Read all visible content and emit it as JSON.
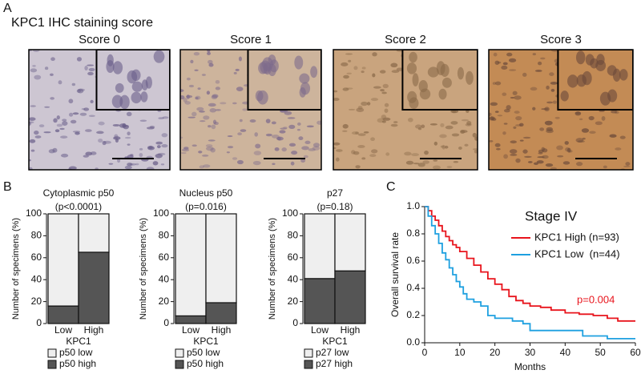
{
  "figure": {
    "panel_labels": [
      "A",
      "B",
      "C"
    ],
    "panel_a": {
      "title": "KPC1 IHC staining score",
      "images": [
        "Score 0",
        "Score 1",
        "Score 2",
        "Score 3"
      ]
    }
  },
  "chart_data": [
    {
      "type": "bar",
      "stacked": true,
      "title": "Cytoplasmic p50",
      "subtitle": "(p<0.0001)",
      "categories": [
        "Low",
        "High"
      ],
      "x_label": "KPC1",
      "y_label": "Number of specimens (%)",
      "ylim": [
        0,
        100
      ],
      "yticks": [
        0,
        20,
        40,
        60,
        80,
        100
      ],
      "series": [
        {
          "name": "p50 low",
          "color": "#efefef",
          "values": [
            84,
            35
          ]
        },
        {
          "name": "p50 high",
          "color": "#555555",
          "values": [
            16,
            65
          ]
        }
      ]
    },
    {
      "type": "bar",
      "stacked": true,
      "title": "Nucleus p50",
      "subtitle": "(p=0.016)",
      "categories": [
        "Low",
        "High"
      ],
      "x_label": "KPC1",
      "y_label": "Number of specimens (%)",
      "ylim": [
        0,
        100
      ],
      "yticks": [
        0,
        20,
        40,
        60,
        80,
        100
      ],
      "series": [
        {
          "name": "p50 low",
          "color": "#efefef",
          "values": [
            93,
            81
          ]
        },
        {
          "name": "p50 high",
          "color": "#555555",
          "values": [
            7,
            19
          ]
        }
      ]
    },
    {
      "type": "bar",
      "stacked": true,
      "title": "p27",
      "subtitle": "(p=0.18)",
      "categories": [
        "Low",
        "High"
      ],
      "x_label": "KPC1",
      "y_label": "Number of specimens (%)",
      "ylim": [
        0,
        100
      ],
      "yticks": [
        0,
        20,
        40,
        60,
        80,
        100
      ],
      "series": [
        {
          "name": "p27 low",
          "color": "#efefef",
          "values": [
            59,
            52
          ]
        },
        {
          "name": "p27 high",
          "color": "#555555",
          "values": [
            41,
            48
          ]
        }
      ]
    },
    {
      "type": "line",
      "drawstyle": "steps-post",
      "title": "Stage IV",
      "annotation": "p=0.004",
      "annotation_color": "#e8141c",
      "x_label": "Months",
      "y_label": "Overall survival rate",
      "legend": "upper right",
      "xlim": [
        0,
        60
      ],
      "xticks": [
        0,
        10,
        20,
        30,
        40,
        50,
        60
      ],
      "ylim": [
        0,
        1
      ],
      "yticks": [
        {
          "value": 0,
          "label": "0.0"
        },
        0.2,
        0.4,
        0.6,
        0.8,
        {
          "value": 1,
          "label": "1.0"
        }
      ],
      "series": [
        {
          "name": "KPC1 High (n=93)",
          "color": "#e8141c",
          "x": [
            0,
            1,
            2,
            3,
            4,
            5,
            6,
            7,
            8,
            9,
            10,
            12,
            14,
            16,
            18,
            20,
            22,
            24,
            26,
            28,
            30,
            33,
            36,
            40,
            44,
            48,
            52,
            55,
            60
          ],
          "values": [
            1.0,
            0.97,
            0.93,
            0.9,
            0.86,
            0.82,
            0.78,
            0.75,
            0.72,
            0.7,
            0.67,
            0.62,
            0.57,
            0.52,
            0.47,
            0.43,
            0.39,
            0.34,
            0.31,
            0.29,
            0.27,
            0.26,
            0.24,
            0.22,
            0.21,
            0.2,
            0.18,
            0.16,
            0.16
          ]
        },
        {
          "name": "KPC1 Low  (n=44)",
          "color": "#1ea0e0",
          "x": [
            0,
            1,
            2,
            3,
            4,
            5,
            6,
            7,
            8,
            9,
            10,
            11,
            12,
            14,
            16,
            18,
            20,
            25,
            28,
            30,
            37,
            40,
            45,
            50,
            52,
            60
          ],
          "values": [
            1.0,
            0.93,
            0.86,
            0.8,
            0.73,
            0.66,
            0.61,
            0.55,
            0.5,
            0.45,
            0.41,
            0.36,
            0.32,
            0.3,
            0.27,
            0.2,
            0.18,
            0.16,
            0.14,
            0.09,
            0.09,
            0.09,
            0.05,
            0.05,
            0.03,
            0.03
          ]
        }
      ]
    }
  ]
}
